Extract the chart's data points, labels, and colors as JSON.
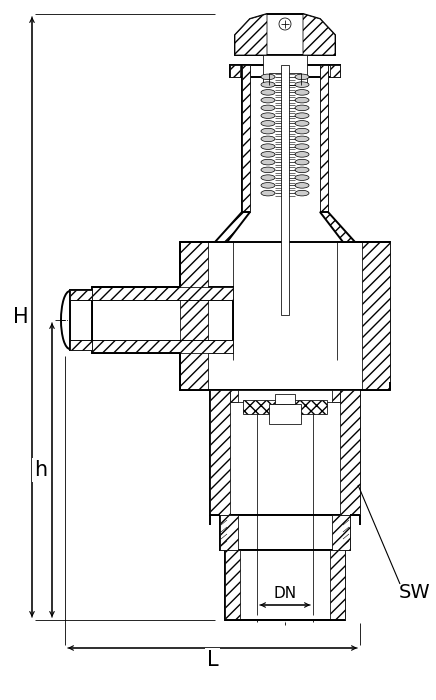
{
  "bg_color": "#ffffff",
  "lc": "#000000",
  "fig_width": 4.36,
  "fig_height": 7.0,
  "dpi": 100,
  "labels": {
    "H": "H",
    "h": "h",
    "L": "L",
    "DN": "DN",
    "SW": "SW"
  },
  "lw_main": 1.4,
  "lw_med": 0.9,
  "lw_thin": 0.55,
  "lw_dim": 0.8
}
